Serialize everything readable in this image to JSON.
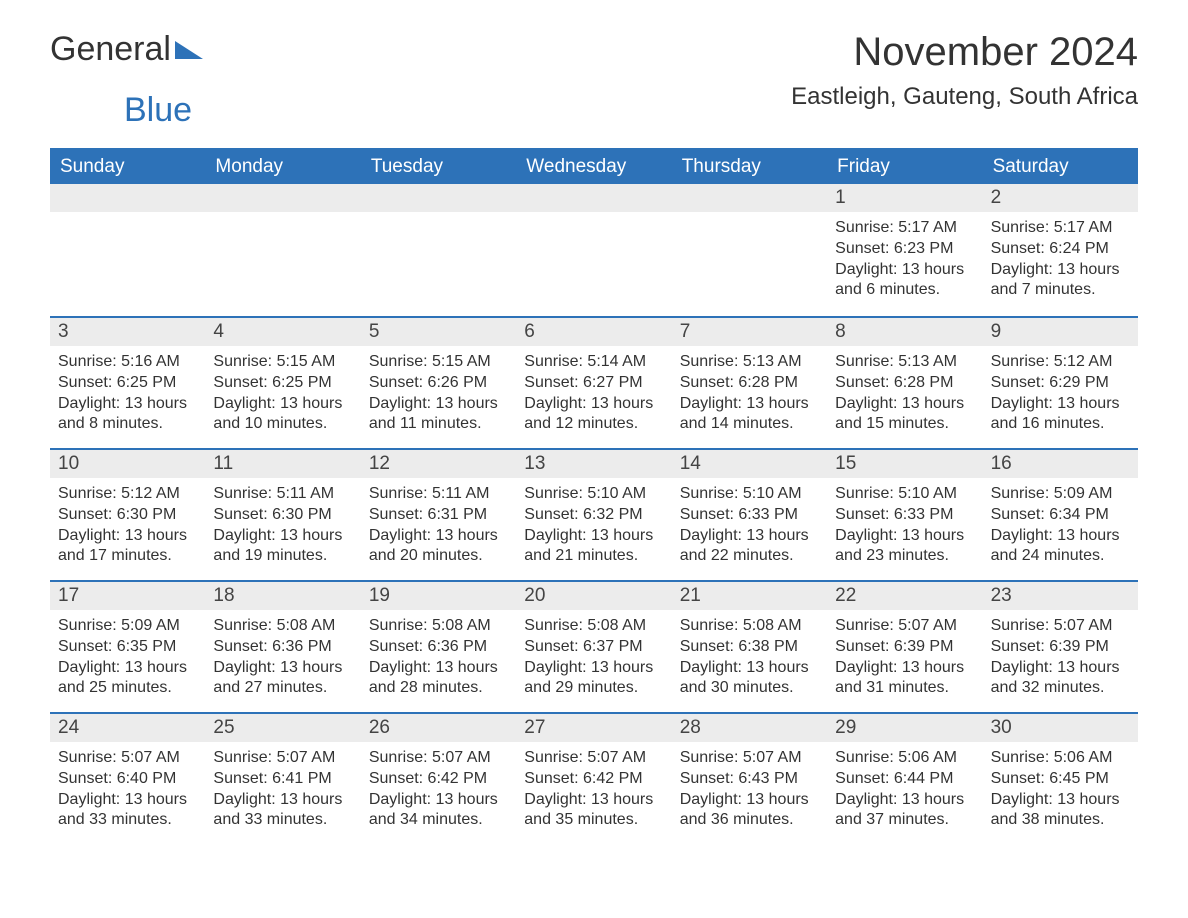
{
  "brand": {
    "name_part1": "General",
    "name_part2": "Blue"
  },
  "title": "November 2024",
  "location": "Eastleigh, Gauteng, South Africa",
  "colors": {
    "header_bg": "#2d72b8",
    "header_text": "#ffffff",
    "daynum_bg": "#ececec",
    "text": "#333333",
    "row_border": "#2d72b8",
    "page_bg": "#ffffff"
  },
  "layout": {
    "columns": 7,
    "rows": 5,
    "font_family": "Arial",
    "month_title_fontsize": 40,
    "location_fontsize": 24,
    "day_header_fontsize": 19,
    "daynum_fontsize": 19,
    "detail_fontsize": 16
  },
  "day_headers": [
    "Sunday",
    "Monday",
    "Tuesday",
    "Wednesday",
    "Thursday",
    "Friday",
    "Saturday"
  ],
  "leading_blanks": 5,
  "days": [
    {
      "n": "1",
      "sunrise": "Sunrise: 5:17 AM",
      "sunset": "Sunset: 6:23 PM",
      "dl1": "Daylight: 13 hours",
      "dl2": "and 6 minutes."
    },
    {
      "n": "2",
      "sunrise": "Sunrise: 5:17 AM",
      "sunset": "Sunset: 6:24 PM",
      "dl1": "Daylight: 13 hours",
      "dl2": "and 7 minutes."
    },
    {
      "n": "3",
      "sunrise": "Sunrise: 5:16 AM",
      "sunset": "Sunset: 6:25 PM",
      "dl1": "Daylight: 13 hours",
      "dl2": "and 8 minutes."
    },
    {
      "n": "4",
      "sunrise": "Sunrise: 5:15 AM",
      "sunset": "Sunset: 6:25 PM",
      "dl1": "Daylight: 13 hours",
      "dl2": "and 10 minutes."
    },
    {
      "n": "5",
      "sunrise": "Sunrise: 5:15 AM",
      "sunset": "Sunset: 6:26 PM",
      "dl1": "Daylight: 13 hours",
      "dl2": "and 11 minutes."
    },
    {
      "n": "6",
      "sunrise": "Sunrise: 5:14 AM",
      "sunset": "Sunset: 6:27 PM",
      "dl1": "Daylight: 13 hours",
      "dl2": "and 12 minutes."
    },
    {
      "n": "7",
      "sunrise": "Sunrise: 5:13 AM",
      "sunset": "Sunset: 6:28 PM",
      "dl1": "Daylight: 13 hours",
      "dl2": "and 14 minutes."
    },
    {
      "n": "8",
      "sunrise": "Sunrise: 5:13 AM",
      "sunset": "Sunset: 6:28 PM",
      "dl1": "Daylight: 13 hours",
      "dl2": "and 15 minutes."
    },
    {
      "n": "9",
      "sunrise": "Sunrise: 5:12 AM",
      "sunset": "Sunset: 6:29 PM",
      "dl1": "Daylight: 13 hours",
      "dl2": "and 16 minutes."
    },
    {
      "n": "10",
      "sunrise": "Sunrise: 5:12 AM",
      "sunset": "Sunset: 6:30 PM",
      "dl1": "Daylight: 13 hours",
      "dl2": "and 17 minutes."
    },
    {
      "n": "11",
      "sunrise": "Sunrise: 5:11 AM",
      "sunset": "Sunset: 6:30 PM",
      "dl1": "Daylight: 13 hours",
      "dl2": "and 19 minutes."
    },
    {
      "n": "12",
      "sunrise": "Sunrise: 5:11 AM",
      "sunset": "Sunset: 6:31 PM",
      "dl1": "Daylight: 13 hours",
      "dl2": "and 20 minutes."
    },
    {
      "n": "13",
      "sunrise": "Sunrise: 5:10 AM",
      "sunset": "Sunset: 6:32 PM",
      "dl1": "Daylight: 13 hours",
      "dl2": "and 21 minutes."
    },
    {
      "n": "14",
      "sunrise": "Sunrise: 5:10 AM",
      "sunset": "Sunset: 6:33 PM",
      "dl1": "Daylight: 13 hours",
      "dl2": "and 22 minutes."
    },
    {
      "n": "15",
      "sunrise": "Sunrise: 5:10 AM",
      "sunset": "Sunset: 6:33 PM",
      "dl1": "Daylight: 13 hours",
      "dl2": "and 23 minutes."
    },
    {
      "n": "16",
      "sunrise": "Sunrise: 5:09 AM",
      "sunset": "Sunset: 6:34 PM",
      "dl1": "Daylight: 13 hours",
      "dl2": "and 24 minutes."
    },
    {
      "n": "17",
      "sunrise": "Sunrise: 5:09 AM",
      "sunset": "Sunset: 6:35 PM",
      "dl1": "Daylight: 13 hours",
      "dl2": "and 25 minutes."
    },
    {
      "n": "18",
      "sunrise": "Sunrise: 5:08 AM",
      "sunset": "Sunset: 6:36 PM",
      "dl1": "Daylight: 13 hours",
      "dl2": "and 27 minutes."
    },
    {
      "n": "19",
      "sunrise": "Sunrise: 5:08 AM",
      "sunset": "Sunset: 6:36 PM",
      "dl1": "Daylight: 13 hours",
      "dl2": "and 28 minutes."
    },
    {
      "n": "20",
      "sunrise": "Sunrise: 5:08 AM",
      "sunset": "Sunset: 6:37 PM",
      "dl1": "Daylight: 13 hours",
      "dl2": "and 29 minutes."
    },
    {
      "n": "21",
      "sunrise": "Sunrise: 5:08 AM",
      "sunset": "Sunset: 6:38 PM",
      "dl1": "Daylight: 13 hours",
      "dl2": "and 30 minutes."
    },
    {
      "n": "22",
      "sunrise": "Sunrise: 5:07 AM",
      "sunset": "Sunset: 6:39 PM",
      "dl1": "Daylight: 13 hours",
      "dl2": "and 31 minutes."
    },
    {
      "n": "23",
      "sunrise": "Sunrise: 5:07 AM",
      "sunset": "Sunset: 6:39 PM",
      "dl1": "Daylight: 13 hours",
      "dl2": "and 32 minutes."
    },
    {
      "n": "24",
      "sunrise": "Sunrise: 5:07 AM",
      "sunset": "Sunset: 6:40 PM",
      "dl1": "Daylight: 13 hours",
      "dl2": "and 33 minutes."
    },
    {
      "n": "25",
      "sunrise": "Sunrise: 5:07 AM",
      "sunset": "Sunset: 6:41 PM",
      "dl1": "Daylight: 13 hours",
      "dl2": "and 33 minutes."
    },
    {
      "n": "26",
      "sunrise": "Sunrise: 5:07 AM",
      "sunset": "Sunset: 6:42 PM",
      "dl1": "Daylight: 13 hours",
      "dl2": "and 34 minutes."
    },
    {
      "n": "27",
      "sunrise": "Sunrise: 5:07 AM",
      "sunset": "Sunset: 6:42 PM",
      "dl1": "Daylight: 13 hours",
      "dl2": "and 35 minutes."
    },
    {
      "n": "28",
      "sunrise": "Sunrise: 5:07 AM",
      "sunset": "Sunset: 6:43 PM",
      "dl1": "Daylight: 13 hours",
      "dl2": "and 36 minutes."
    },
    {
      "n": "29",
      "sunrise": "Sunrise: 5:06 AM",
      "sunset": "Sunset: 6:44 PM",
      "dl1": "Daylight: 13 hours",
      "dl2": "and 37 minutes."
    },
    {
      "n": "30",
      "sunrise": "Sunrise: 5:06 AM",
      "sunset": "Sunset: 6:45 PM",
      "dl1": "Daylight: 13 hours",
      "dl2": "and 38 minutes."
    }
  ]
}
